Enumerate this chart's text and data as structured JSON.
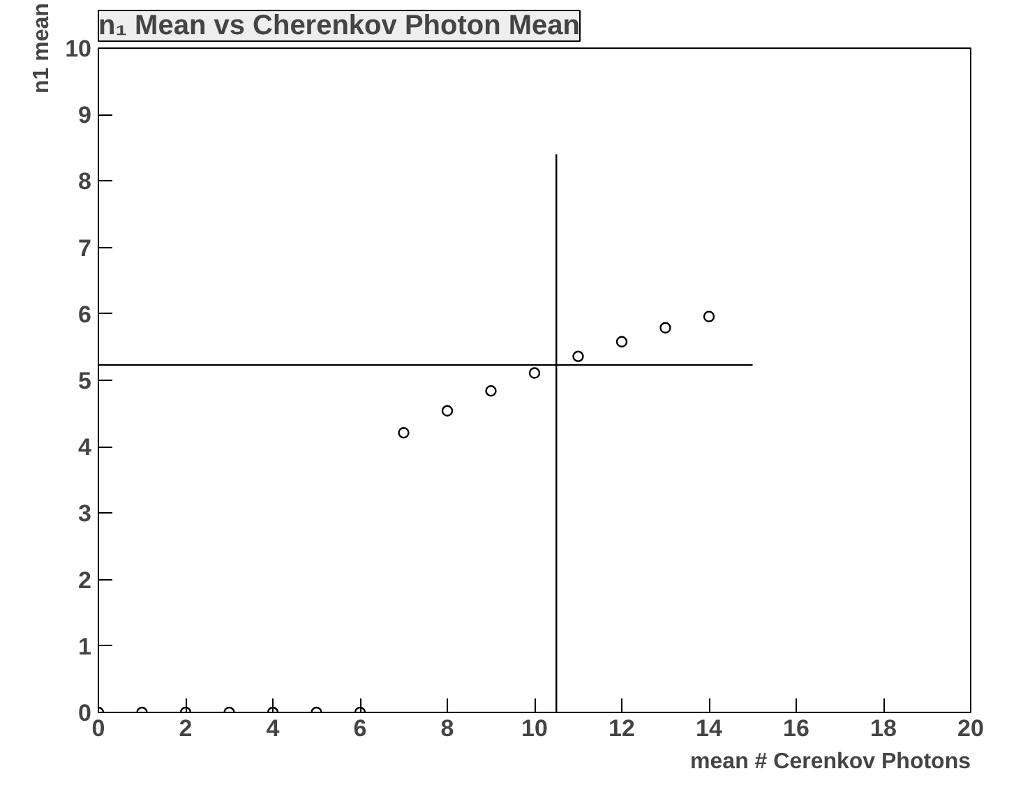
{
  "chart_data": {
    "type": "scatter",
    "title": "n₁ Mean vs Cherenkov Photon Mean",
    "xlabel": "mean # Cerenkov Photons",
    "ylabel": "n1 mean",
    "xlim": [
      0,
      20
    ],
    "xticks": [
      0,
      2,
      4,
      6,
      8,
      10,
      12,
      14,
      16,
      18,
      20
    ],
    "ylim": [
      0,
      10
    ],
    "yticks": [
      0,
      1,
      2,
      3,
      4,
      5,
      6,
      7,
      8,
      9,
      10
    ],
    "grid": false,
    "marker": "circle",
    "series": [
      {
        "color": "#000000",
        "x": [
          0,
          1,
          2,
          3,
          4,
          5,
          6,
          7,
          8,
          9,
          10,
          11,
          12,
          13,
          14
        ],
        "values": [
          0,
          0,
          0,
          0,
          0,
          0,
          0,
          4.21,
          4.54,
          4.84,
          5.11,
          5.36,
          5.58,
          5.79,
          5.96
        ]
      },
      {
        "type": "line",
        "color": "#000000",
        "marker": "none",
        "x": [
          10.5,
          10.5
        ],
        "values": [
          0,
          8.4
        ]
      },
      {
        "type": "line",
        "color": "#000000",
        "marker": "none",
        "x": [
          0,
          15
        ],
        "values": [
          5.23,
          5.23
        ]
      }
    ]
  }
}
